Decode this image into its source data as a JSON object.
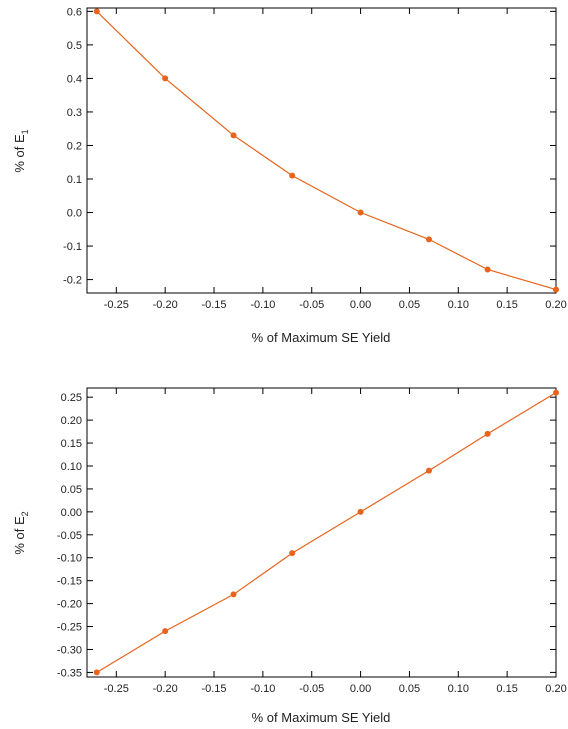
{
  "chart_data": [
    {
      "type": "line",
      "title": "",
      "xlabel": "% of Maximum SE Yield",
      "ylabel_prefix": "% of E",
      "ylabel_subscript": "1",
      "xlim": [
        -0.28,
        0.2
      ],
      "ylim": [
        -0.24,
        0.61
      ],
      "x_ticks": [
        -0.25,
        -0.2,
        -0.15,
        -0.1,
        -0.05,
        0.0,
        0.05,
        0.1,
        0.15,
        0.2
      ],
      "x_tick_labels": [
        "-0.25",
        "-0.20",
        "-0.15",
        "-0.10",
        "-0.05",
        "0.00",
        "0.05",
        "0.10",
        "0.15",
        "0.20"
      ],
      "y_ticks": [
        -0.2,
        -0.1,
        0.0,
        0.1,
        0.2,
        0.3,
        0.4,
        0.5,
        0.6
      ],
      "y_tick_labels": [
        "-0.2",
        "-0.1",
        "0.0",
        "0.1",
        "0.2",
        "0.3",
        "0.4",
        "0.5",
        "0.6"
      ],
      "grid": false,
      "series": [
        {
          "x": [
            -0.27,
            -0.2,
            -0.13,
            -0.07,
            0.0,
            0.07,
            0.13,
            0.2
          ],
          "y": [
            0.6,
            0.4,
            0.23,
            0.11,
            0.0,
            -0.08,
            -0.17,
            -0.23
          ],
          "color": "#e8631c",
          "marker": "circle"
        }
      ]
    },
    {
      "type": "line",
      "title": "",
      "xlabel": "% of Maximum SE Yield",
      "ylabel_prefix": "% of E",
      "ylabel_subscript": "2",
      "xlim": [
        -0.28,
        0.2
      ],
      "ylim": [
        -0.36,
        0.27
      ],
      "x_ticks": [
        -0.25,
        -0.2,
        -0.15,
        -0.1,
        -0.05,
        0.0,
        0.05,
        0.1,
        0.15,
        0.2
      ],
      "x_tick_labels": [
        "-0.25",
        "-0.20",
        "-0.15",
        "-0.10",
        "-0.05",
        "0.00",
        "0.05",
        "0.10",
        "0.15",
        "0.20"
      ],
      "y_ticks": [
        -0.35,
        -0.3,
        -0.25,
        -0.2,
        -0.15,
        -0.1,
        -0.05,
        0.0,
        0.05,
        0.1,
        0.15,
        0.2,
        0.25
      ],
      "y_tick_labels": [
        "-0.35",
        "-0.30",
        "-0.25",
        "-0.20",
        "-0.15",
        "-0.10",
        "-0.05",
        "0.00",
        "0.05",
        "0.10",
        "0.15",
        "0.20",
        "0.25"
      ],
      "grid": false,
      "series": [
        {
          "x": [
            -0.27,
            -0.2,
            -0.13,
            -0.07,
            0.0,
            0.07,
            0.13,
            0.2
          ],
          "y": [
            -0.35,
            -0.26,
            -0.18,
            -0.09,
            0.0,
            0.09,
            0.17,
            0.26
          ],
          "color": "#e8631c",
          "marker": "circle"
        }
      ]
    }
  ]
}
